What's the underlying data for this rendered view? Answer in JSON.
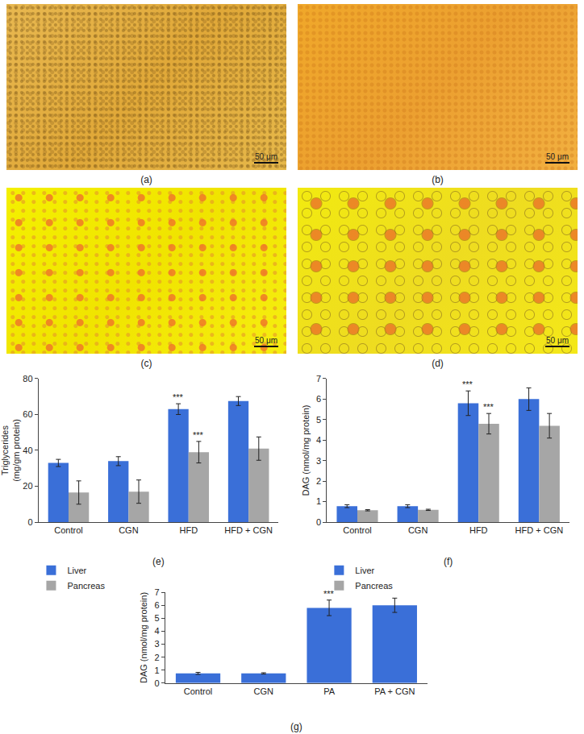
{
  "panels": [
    {
      "label": "(a)",
      "scale_bar": "50 μm"
    },
    {
      "label": "(b)",
      "scale_bar": "50 μm"
    },
    {
      "label": "(c)",
      "scale_bar": "50 μm"
    },
    {
      "label": "(d)",
      "scale_bar": "50 μm"
    }
  ],
  "chart_data": [
    {
      "type": "bar",
      "caption": "(e)",
      "y_label": "Triglycerides\n(mg/gm protein)",
      "categories": [
        "Control",
        "CGN",
        "HFD",
        "HFD + CGN"
      ],
      "series": [
        {
          "name": "Liver",
          "color": "#3a6fd8",
          "values": [
            33,
            34,
            63,
            67.5
          ],
          "errors": [
            2,
            2.5,
            3,
            2.5
          ]
        },
        {
          "name": "Pancreas",
          "color": "#a6a6a6",
          "values": [
            16.5,
            17,
            39,
            41
          ],
          "errors": [
            6.5,
            6.5,
            6,
            6.5
          ]
        }
      ],
      "ylim": [
        0,
        80
      ],
      "yticks": [
        0,
        20,
        40,
        60,
        80
      ],
      "legend": "bottom left",
      "annotations": [
        {
          "text": "***",
          "category": "HFD",
          "series": "Liver"
        },
        {
          "text": "***",
          "category": "HFD",
          "series": "Pancreas"
        }
      ]
    },
    {
      "type": "bar",
      "caption": "(f)",
      "y_label": "DAG (nmol/mg protein)",
      "categories": [
        "Control",
        "CGN",
        "HFD",
        "HFD + CGN"
      ],
      "series": [
        {
          "name": "Liver",
          "color": "#3a6fd8",
          "values": [
            0.78,
            0.78,
            5.8,
            6.0
          ],
          "errors": [
            0.07,
            0.07,
            0.6,
            0.55
          ]
        },
        {
          "name": "Pancreas",
          "color": "#a6a6a6",
          "values": [
            0.58,
            0.6,
            4.8,
            4.7
          ],
          "errors": [
            0.03,
            0.03,
            0.5,
            0.6
          ]
        }
      ],
      "ylim": [
        0,
        7
      ],
      "yticks": [
        0,
        1,
        2,
        3,
        4,
        5,
        6,
        7
      ],
      "legend": "bottom left",
      "annotations": [
        {
          "text": "***",
          "category": "HFD",
          "series": "Liver"
        },
        {
          "text": "***",
          "category": "HFD",
          "series": "Pancreas"
        }
      ]
    },
    {
      "type": "bar",
      "caption": "(g)",
      "y_label": "DAG (nmol/mg protein)",
      "categories": [
        "Control",
        "CGN",
        "PA",
        "PA + CGN"
      ],
      "values": [
        0.75,
        0.75,
        5.8,
        6.0
      ],
      "errors": [
        0.08,
        0.05,
        0.6,
        0.55
      ],
      "color": "#3a6fd8",
      "ylim": [
        0,
        7
      ],
      "yticks": [
        0,
        1,
        2,
        3,
        4,
        5,
        6,
        7
      ],
      "annotations": [
        {
          "text": "***",
          "category": "PA"
        }
      ]
    }
  ]
}
